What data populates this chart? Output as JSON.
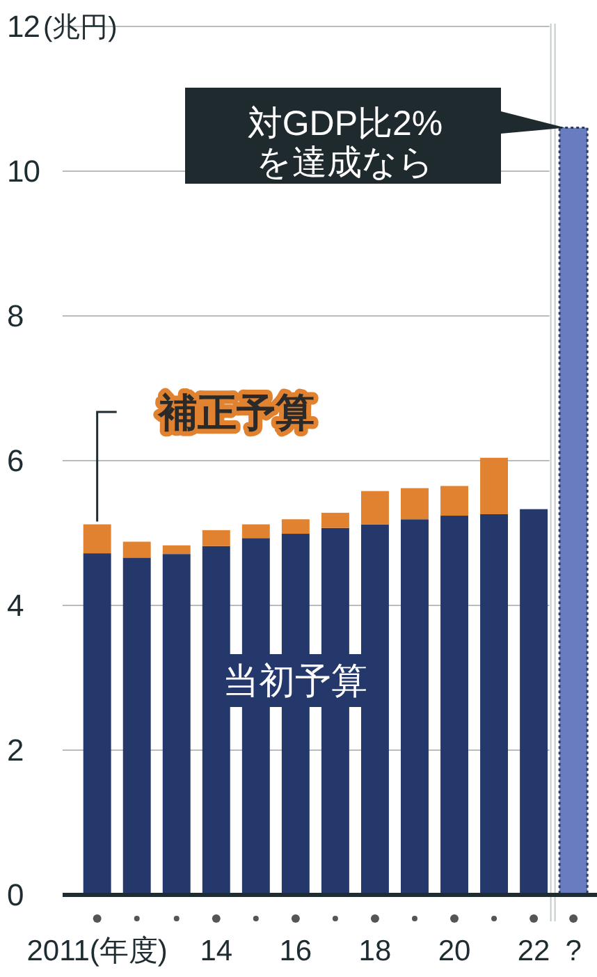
{
  "chart_data": {
    "type": "bar",
    "stacked": true,
    "ylabel": "(兆円)",
    "categories": [
      "2011(年度)",
      null,
      null,
      "14",
      null,
      "16",
      null,
      "18",
      null,
      "20",
      null,
      "22",
      "?"
    ],
    "series": [
      {
        "name": "当初予算",
        "color": "#24386b",
        "colors": [
          "#24386b",
          "#24386b",
          "#24386b",
          "#24386b",
          "#24386b",
          "#24386b",
          "#24386b",
          "#24386b",
          "#24386b",
          "#24386b",
          "#24386b",
          "#24386b",
          "#6a7cc0"
        ],
        "values": [
          4.72,
          4.66,
          4.71,
          4.82,
          4.93,
          4.99,
          5.07,
          5.12,
          5.19,
          5.24,
          5.26,
          5.33,
          10.6
        ]
      },
      {
        "name": "補正予算",
        "color": "#e0822f",
        "values": [
          0.4,
          0.22,
          0.12,
          0.22,
          0.19,
          0.2,
          0.21,
          0.46,
          0.43,
          0.41,
          0.78,
          null,
          null
        ]
      }
    ],
    "ylim": [
      0,
      12
    ],
    "yticks": [
      0,
      2,
      4,
      6,
      8,
      10,
      12
    ],
    "grid": "y",
    "annotations": [
      "対GDP比2%\nを達成なら"
    ]
  }
}
